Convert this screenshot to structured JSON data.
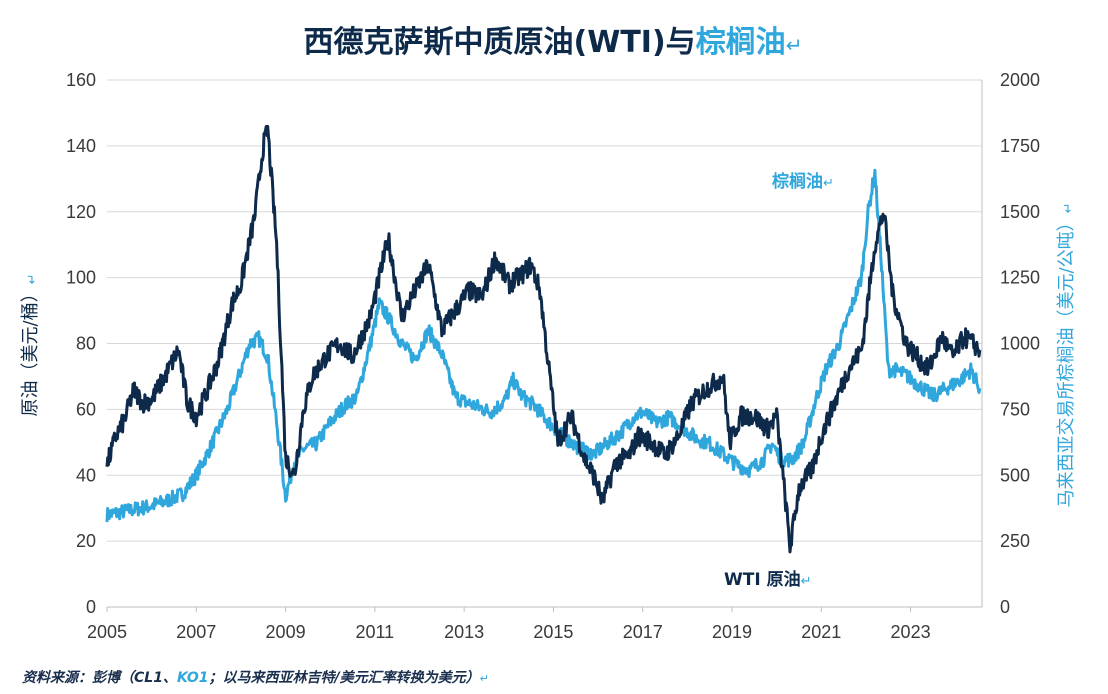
{
  "colors": {
    "wti": "#0e2a4a",
    "palm": "#2fa6dc",
    "grid": "#d8d8d8",
    "axis": "#3a3a3a"
  },
  "chart_data": {
    "type": "line",
    "title_part1": "西德克萨斯中质原油(WTI)与",
    "title_part2": "棕榈油",
    "title_mark": "↵",
    "xlim": [
      2005,
      2024.6
    ],
    "x_ticks": [
      "2005",
      "2007",
      "2009",
      "2011",
      "2013",
      "2015",
      "2017",
      "2019",
      "2021",
      "2023"
    ],
    "y_left": {
      "label": "原油（美元/桶）",
      "mark": "↵",
      "ylim": [
        0,
        160
      ],
      "ticks": [
        "0",
        "20",
        "40",
        "60",
        "80",
        "100",
        "120",
        "140",
        "160"
      ]
    },
    "y_right": {
      "label": "马来西亚交易所棕榈油（美元/公吨）",
      "mark": "↵",
      "ylim": [
        0,
        2000
      ],
      "ticks": [
        "0",
        "250",
        "500",
        "750",
        "1000",
        "1250",
        "1500",
        "1750",
        "2000"
      ]
    },
    "grid": "horizontal",
    "series": [
      {
        "name": "WTI 原油",
        "mark": "↵",
        "axis": "left",
        "x": [
          2005.0,
          2005.2,
          2005.4,
          2005.6,
          2005.8,
          2006.0,
          2006.3,
          2006.6,
          2006.8,
          2007.0,
          2007.2,
          2007.5,
          2007.8,
          2008.0,
          2008.3,
          2008.5,
          2008.6,
          2008.8,
          2009.0,
          2009.2,
          2009.4,
          2009.6,
          2009.9,
          2010.2,
          2010.5,
          2010.9,
          2011.1,
          2011.3,
          2011.6,
          2011.9,
          2012.2,
          2012.5,
          2012.8,
          2013.1,
          2013.4,
          2013.7,
          2014.0,
          2014.3,
          2014.5,
          2014.7,
          2014.9,
          2015.1,
          2015.4,
          2015.7,
          2015.9,
          2016.1,
          2016.4,
          2016.7,
          2016.9,
          2017.2,
          2017.5,
          2017.8,
          2018.1,
          2018.4,
          2018.8,
          2018.95,
          2019.2,
          2019.5,
          2019.8,
          2020.0,
          2020.2,
          2020.3,
          2020.5,
          2020.8,
          2021.0,
          2021.3,
          2021.6,
          2021.9,
          2022.0,
          2022.2,
          2022.4,
          2022.6,
          2022.9,
          2023.2,
          2023.4,
          2023.7,
          2023.95,
          2024.2,
          2024.4,
          2024.55
        ],
        "values": [
          43,
          52,
          57,
          66,
          62,
          63,
          70,
          78,
          62,
          58,
          64,
          75,
          92,
          98,
          118,
          140,
          145,
          110,
          45,
          40,
          60,
          70,
          76,
          80,
          76,
          88,
          100,
          112,
          88,
          96,
          104,
          84,
          90,
          96,
          94,
          106,
          98,
          101,
          104,
          96,
          72,
          50,
          58,
          45,
          40,
          32,
          44,
          46,
          52,
          50,
          46,
          52,
          62,
          66,
          70,
          50,
          58,
          58,
          54,
          58,
          32,
          18,
          36,
          42,
          52,
          62,
          72,
          78,
          88,
          110,
          120,
          95,
          80,
          75,
          72,
          82,
          76,
          82,
          80,
          78
        ]
      },
      {
        "name": "棕榈油",
        "mark": "↵",
        "axis": "right",
        "x": [
          2005.0,
          2005.3,
          2005.6,
          2005.9,
          2006.3,
          2006.7,
          2007.0,
          2007.3,
          2007.7,
          2008.0,
          2008.2,
          2008.4,
          2008.6,
          2008.8,
          2009.0,
          2009.2,
          2009.4,
          2009.7,
          2010.0,
          2010.3,
          2010.6,
          2010.9,
          2011.1,
          2011.3,
          2011.6,
          2011.9,
          2012.2,
          2012.5,
          2012.8,
          2013.0,
          2013.3,
          2013.6,
          2013.9,
          2014.1,
          2014.3,
          2014.6,
          2014.9,
          2015.2,
          2015.6,
          2015.9,
          2016.2,
          2016.5,
          2016.8,
          2017.0,
          2017.3,
          2017.6,
          2017.9,
          2018.2,
          2018.5,
          2018.8,
          2019.1,
          2019.4,
          2019.7,
          2019.9,
          2020.1,
          2020.35,
          2020.6,
          2020.9,
          2021.1,
          2021.4,
          2021.6,
          2021.9,
          2022.05,
          2022.2,
          2022.35,
          2022.5,
          2022.65,
          2022.9,
          2023.2,
          2023.5,
          2023.8,
          2024.1,
          2024.35,
          2024.55
        ],
        "values": [
          350,
          360,
          370,
          380,
          400,
          430,
          500,
          600,
          750,
          900,
          1000,
          1020,
          950,
          700,
          420,
          550,
          600,
          620,
          700,
          760,
          800,
          1000,
          1150,
          1100,
          1000,
          940,
          1050,
          960,
          800,
          780,
          760,
          740,
          780,
          860,
          800,
          760,
          700,
          650,
          600,
          580,
          620,
          660,
          720,
          740,
          700,
          720,
          680,
          640,
          620,
          580,
          540,
          520,
          560,
          620,
          560,
          560,
          620,
          800,
          900,
          1000,
          1100,
          1250,
          1500,
          1650,
          1300,
          900,
          900,
          880,
          840,
          800,
          830,
          860,
          900,
          830
        ]
      }
    ],
    "annotations": {
      "wti_label": "WTI 原油",
      "palm_label": "棕榈油",
      "mark": "↵"
    }
  },
  "source_note": {
    "prefix": "资料来源：彭博（CL1、",
    "ko": "KO1",
    "suffix": "；以马来西亚林吉特/美元汇率转换为美元）",
    "mark": "↵"
  }
}
